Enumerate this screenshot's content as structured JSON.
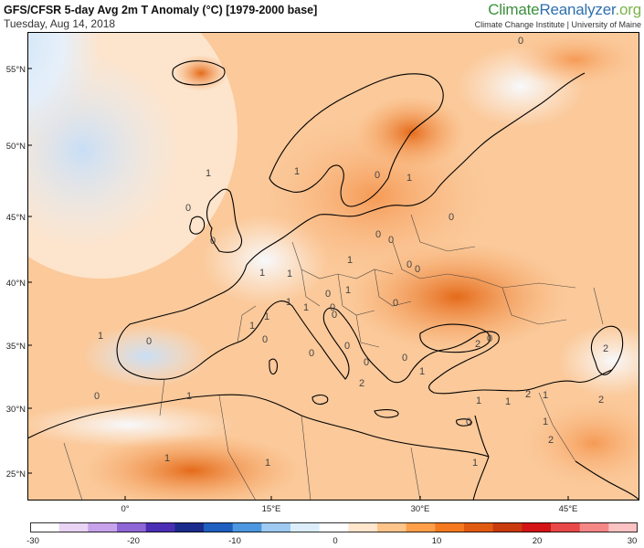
{
  "header": {
    "title": "GFS/CFSR 5-day Avg 2m T Anomaly (°C) [1979-2000 base]",
    "date": "Tuesday, Aug 14, 2018"
  },
  "brand": {
    "part1": "Climate",
    "part2": "Reanalyzer",
    "part3": ".org",
    "subtitle": "Climate Change Institute | University of Maine"
  },
  "axes": {
    "lat_labels": [
      "55°N",
      "50°N",
      "45°N",
      "40°N",
      "35°N",
      "30°N",
      "25°N"
    ],
    "lon_labels": [
      "0°",
      "15°E",
      "30°E",
      "45°E"
    ]
  },
  "contour_labels": [
    "0",
    "1",
    "0",
    "1",
    "0",
    "1",
    "0",
    "0",
    "0",
    "0",
    "0",
    "1",
    "1",
    "1",
    "0",
    "0",
    "1",
    "1",
    "1",
    "1",
    "0",
    "0",
    "1",
    "0",
    "1",
    "0",
    "0",
    "0",
    "1",
    "1",
    "0",
    "2",
    "0",
    "0",
    "2",
    "1",
    "1",
    "1",
    "1",
    "1",
    "0",
    "2",
    "2",
    "2",
    "1",
    "1",
    "0",
    "2",
    "0"
  ],
  "colorbar": {
    "ticks": [
      "-30",
      "-20",
      "-10",
      "0",
      "10",
      "20",
      "30"
    ],
    "colors": [
      "#ffffff",
      "#e9d4f5",
      "#c7a3eb",
      "#8f66d6",
      "#4a2fb5",
      "#1c2c8c",
      "#1f5fbf",
      "#4c97e0",
      "#9fcaf2",
      "#dceefb",
      "#ffffff",
      "#ffe6cc",
      "#ffc48a",
      "#ff9f4a",
      "#f57a1f",
      "#e05a10",
      "#c93a0c",
      "#d41414",
      "#e84848",
      "#f58787",
      "#fbc3c3"
    ]
  }
}
